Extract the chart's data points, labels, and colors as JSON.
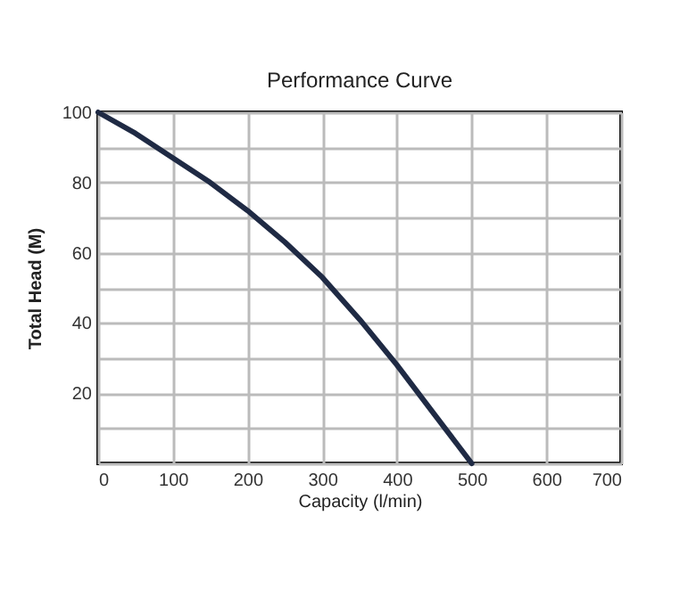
{
  "chart_data": {
    "type": "line",
    "title": "Performance Curve",
    "xlabel": "Capacity (l/min)",
    "ylabel": "Total Head (M)",
    "x": [
      0,
      50,
      100,
      150,
      200,
      250,
      300,
      350,
      400,
      450,
      500
    ],
    "series": [
      {
        "color": "#1f2a44",
        "values": [
          100,
          94,
          87,
          80,
          72,
          63,
          53,
          41,
          28,
          14,
          0
        ]
      }
    ],
    "xlim": [
      0,
      700
    ],
    "xticks": [
      0,
      100,
      200,
      300,
      400,
      500,
      600,
      700
    ],
    "ylim": [
      0,
      100
    ],
    "yticks": [
      {
        "value": 0,
        "label": null
      },
      {
        "value": 10,
        "label": null
      },
      20,
      {
        "value": 30,
        "label": null
      },
      40,
      {
        "value": 50,
        "label": null
      },
      60,
      {
        "value": 70,
        "label": null
      },
      80,
      {
        "value": 90,
        "label": null
      },
      100
    ],
    "grid": true,
    "marker": "none",
    "line_style": "solid",
    "legend": false
  }
}
